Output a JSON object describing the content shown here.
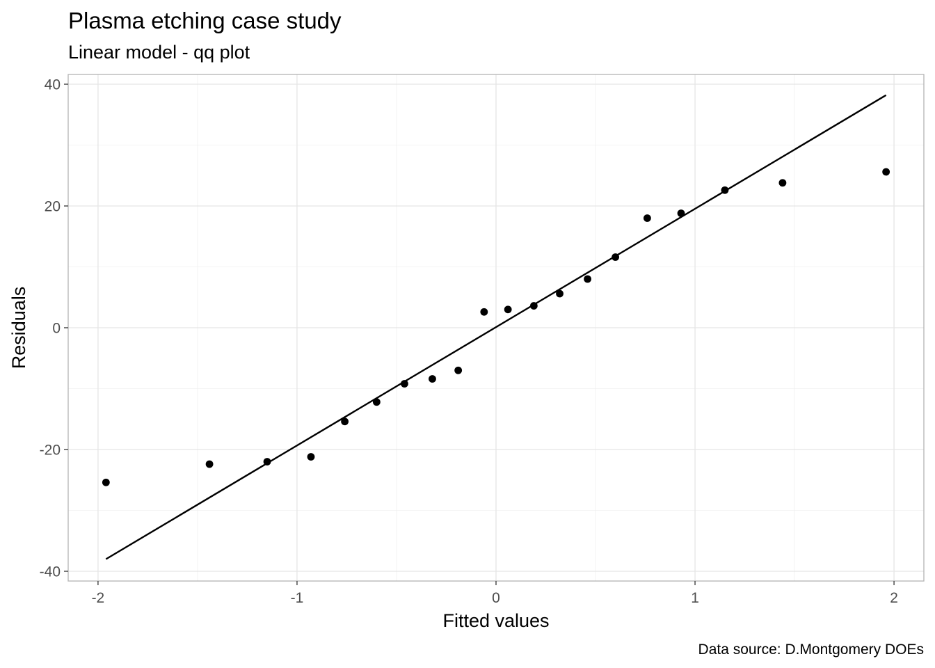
{
  "chart_data": {
    "type": "scatter",
    "title": "Plasma etching case study",
    "subtitle": "Linear model - qq plot",
    "xlabel": "Fitted values",
    "ylabel": "Residuals",
    "caption": "Data source: D.Montgomery DOEs",
    "xlim": [
      -2.15,
      2.15
    ],
    "ylim": [
      -41.6,
      41.6
    ],
    "x_ticks": [
      -2,
      -1,
      0,
      1,
      2
    ],
    "x_tick_labels": [
      "-2",
      "-1",
      "0",
      "1",
      "2"
    ],
    "y_ticks": [
      -40,
      -20,
      0,
      20,
      40
    ],
    "y_tick_labels": [
      "-40",
      "-20",
      "0",
      "20",
      "40"
    ],
    "grid": true,
    "points": {
      "x": [
        -1.96,
        -1.44,
        -1.15,
        -0.93,
        -0.76,
        -0.6,
        -0.46,
        -0.32,
        -0.19,
        -0.06,
        0.06,
        0.19,
        0.32,
        0.46,
        0.6,
        0.76,
        0.93,
        1.15,
        1.44,
        1.96
      ],
      "y": [
        -25.4,
        -22.4,
        -22.0,
        -21.2,
        -15.4,
        -12.2,
        -9.2,
        -8.4,
        -7.0,
        2.6,
        3.0,
        3.6,
        5.6,
        8.0,
        11.6,
        18.0,
        18.8,
        22.6,
        23.8,
        25.6
      ]
    },
    "reference_line": {
      "x": [
        -1.96,
        1.96
      ],
      "y": [
        -38.0,
        38.2
      ]
    },
    "colors": {
      "points": "#000000",
      "line": "#000000",
      "grid": "#e5e5e5",
      "panel_border": "#b3b3b3"
    }
  }
}
